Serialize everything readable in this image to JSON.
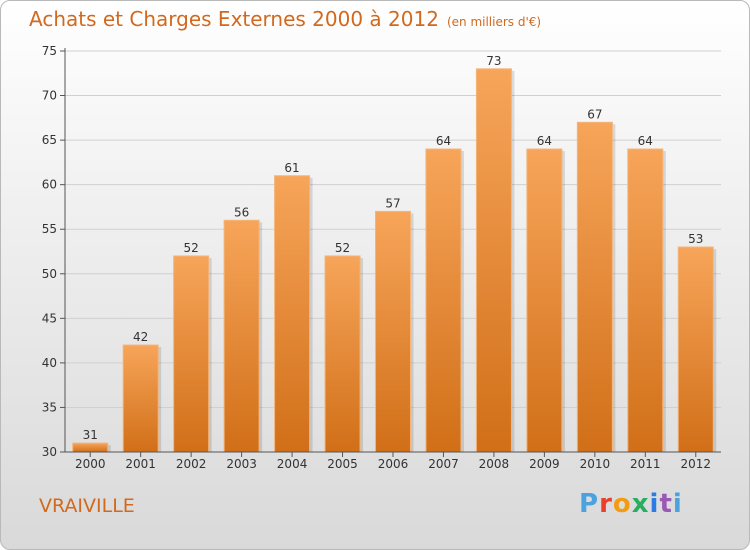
{
  "header": {
    "title": "Achats et Charges Externes 2000 à 2012",
    "subtitle": "(en milliers d'€)"
  },
  "footer": {
    "commune": "VRAIVILLE",
    "brand": "Proxiti"
  },
  "colors": {
    "title": "#d2691e",
    "bar_top": "#f7a55a",
    "bar_bottom": "#d16f18",
    "grid": "#d0d0d0"
  },
  "chart_data": {
    "type": "bar",
    "title": "Achats et Charges Externes 2000 à 2012",
    "subtitle": "(en milliers d'€)",
    "categories": [
      "2000",
      "2001",
      "2002",
      "2003",
      "2004",
      "2005",
      "2006",
      "2007",
      "2008",
      "2009",
      "2010",
      "2011",
      "2012"
    ],
    "values": [
      31,
      42,
      52,
      56,
      61,
      52,
      57,
      64,
      73,
      64,
      67,
      64,
      53
    ],
    "data_labels": [
      "31",
      "42",
      "52",
      "56",
      "61",
      "52",
      "57",
      "64",
      "73",
      "64",
      "67",
      "64",
      "53"
    ],
    "ylim": [
      30,
      75
    ],
    "yticks": [
      30,
      35,
      40,
      45,
      50,
      55,
      60,
      65,
      70,
      75
    ],
    "xlabel": "",
    "ylabel": "",
    "grid": true
  }
}
